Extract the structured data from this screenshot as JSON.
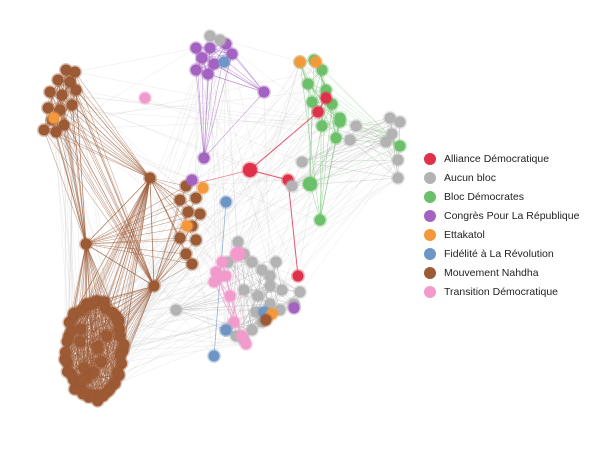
{
  "legend": {
    "items": [
      {
        "label": "Alliance Démocratique",
        "color": "#e0314a"
      },
      {
        "label": "Aucun bloc",
        "color": "#b3b3b3"
      },
      {
        "label": "Bloc Démocrates",
        "color": "#6cc06a"
      },
      {
        "label": "Congrès Pour La République",
        "color": "#a462c1"
      },
      {
        "label": "Ettakatol",
        "color": "#f4983c"
      },
      {
        "label": "Fidélité à La Révolution",
        "color": "#6d96c6"
      },
      {
        "label": "Mouvement Nahdha",
        "color": "#9c5a35"
      },
      {
        "label": "Transition Démocratique",
        "color": "#f29acc"
      }
    ]
  }
}
